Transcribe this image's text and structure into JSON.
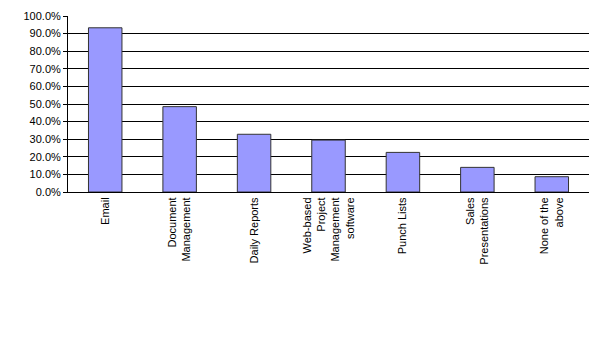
{
  "chart_data": {
    "type": "bar",
    "categories": [
      "Email",
      "Document Management",
      "Daily Reports",
      "Web-based Project Management software",
      "Punch Lists",
      "Sales Presentations",
      "None of the above"
    ],
    "values": [
      93.3,
      48.5,
      32.8,
      29.5,
      22.5,
      14.0,
      8.7
    ],
    "color": "#9999ff",
    "ylim": [
      0,
      100
    ],
    "yticks": [
      {
        "value": 0,
        "label": "0.0%"
      },
      {
        "value": 10,
        "label": "10.0%"
      },
      {
        "value": 20,
        "label": "20.0%"
      },
      {
        "value": 30,
        "label": "30.0%"
      },
      {
        "value": 40,
        "label": "40.0%"
      },
      {
        "value": 50,
        "label": "50.0%"
      },
      {
        "value": 60,
        "label": "60.0%"
      },
      {
        "value": 70,
        "label": "70.0%"
      },
      {
        "value": 80,
        "label": "80.0%"
      },
      {
        "value": 90,
        "label": "90.0%"
      },
      {
        "value": 100,
        "label": "100.0%"
      }
    ],
    "grid": true
  }
}
